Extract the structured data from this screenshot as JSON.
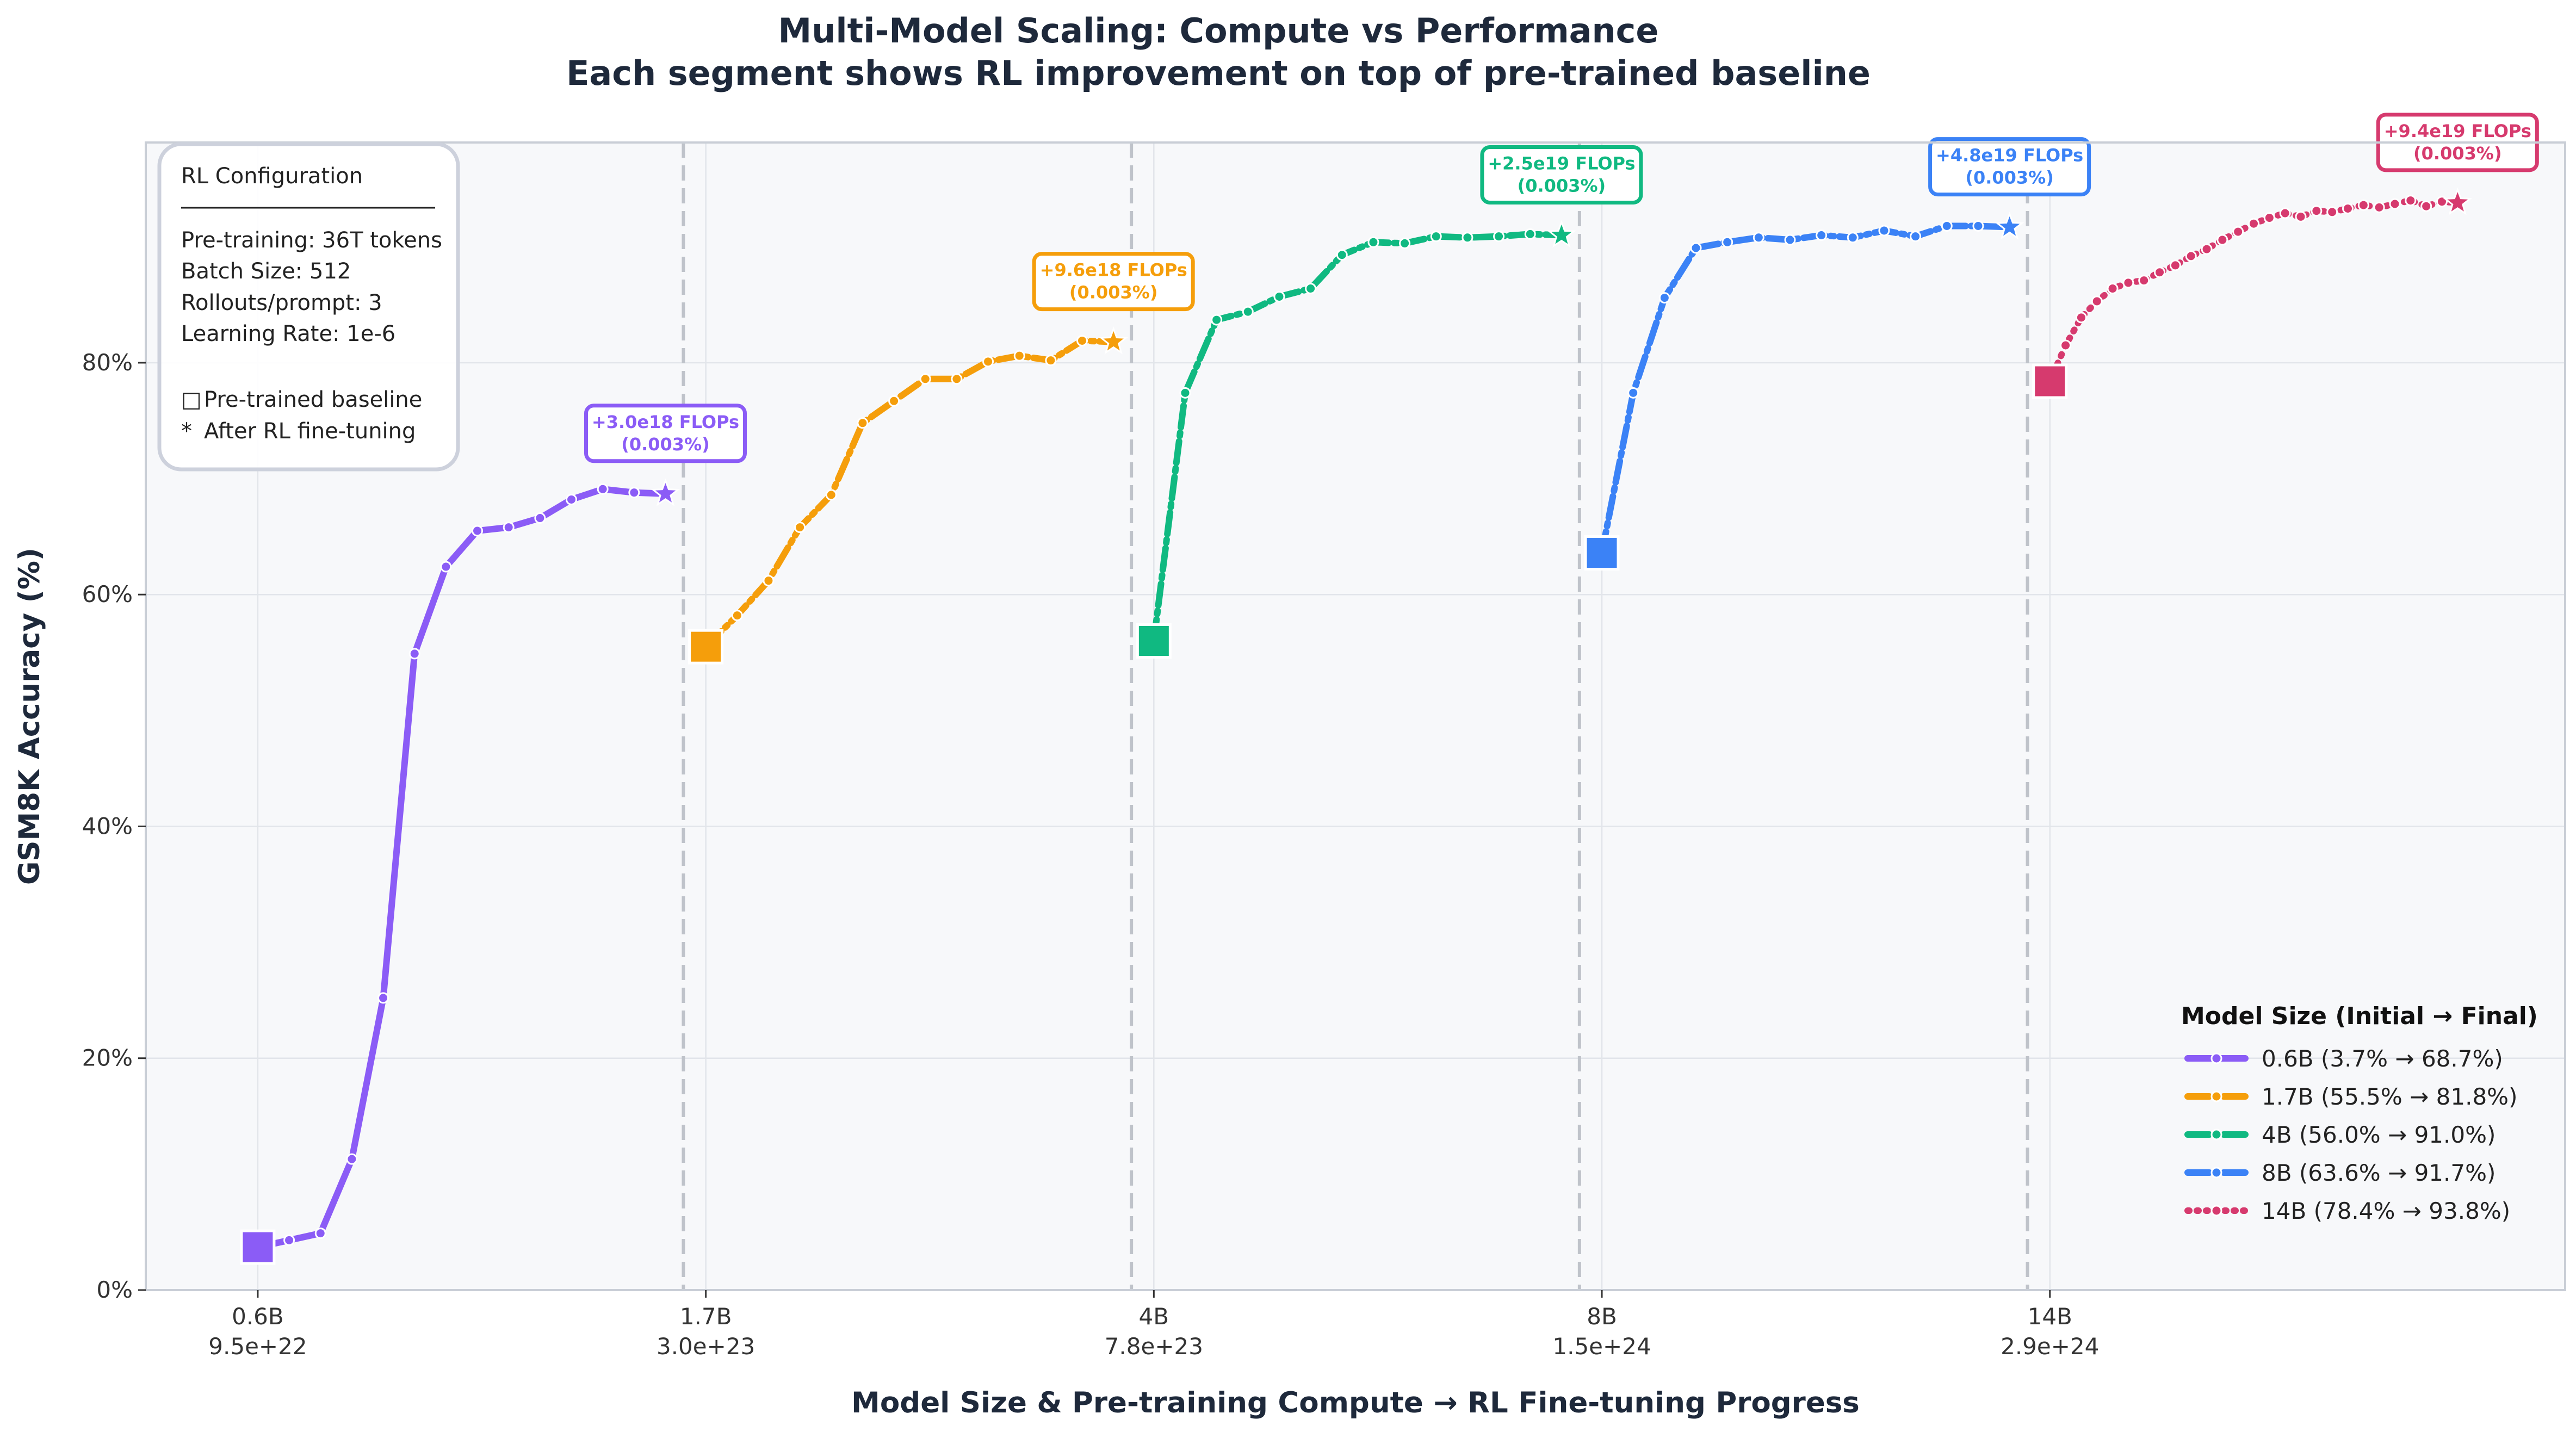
{
  "title_line1": "Multi-Model Scaling: Compute vs Performance",
  "title_line2": "Each segment shows RL improvement on top of pre-trained baseline",
  "colors": {
    "0.6B": "#8b5cf6",
    "1.7B": "#f59e0b",
    "4B": "#10b981",
    "8B": "#3b82f6",
    "14B": "#d63a6e",
    "plot_bg": "#f7f8fa",
    "grid": "#e2e5ea",
    "divider": "#bfc3ca"
  },
  "config_box": {
    "title": "RL Configuration",
    "lines": [
      "Pre-training: 36T tokens",
      "Batch Size: 512",
      "Rollouts/prompt: 3",
      "Learning Rate: 1e-6"
    ],
    "marker_lines": [
      {
        "symbol": "□",
        "text": "Pre-trained baseline"
      },
      {
        "symbol": "*",
        "text": "After RL fine-tuning"
      }
    ]
  },
  "legend": {
    "title": "Model Size (Initial → Final)",
    "items": [
      "0.6B (3.7% → 68.7%)",
      "1.7B (55.5% → 81.8%)",
      "4B (56.0% → 91.0%)",
      "8B (63.6% → 91.7%)",
      "14B (78.4% → 93.8%)"
    ]
  },
  "chart_data": {
    "type": "line",
    "title": "Multi-Model Scaling: Compute vs Performance\nEach segment shows RL improvement on top of pre-trained baseline",
    "xlabel": "Model Size & Pre-training Compute → RL Fine-tuning Progress",
    "ylabel": "GSM8K Accuracy (%)",
    "xlim": [
      -0.25,
      5.15
    ],
    "ylim": [
      0,
      99
    ],
    "grid": true,
    "legend_placement": "bottom-right",
    "x_ticks": [
      {
        "x": 0,
        "label": "0.6B",
        "sublabel": "9.5e+22"
      },
      {
        "x": 1,
        "label": "1.7B",
        "sublabel": "3.0e+23"
      },
      {
        "x": 2,
        "label": "4B",
        "sublabel": "7.8e+23"
      },
      {
        "x": 3,
        "label": "8B",
        "sublabel": "1.5e+24"
      },
      {
        "x": 4,
        "label": "14B",
        "sublabel": "2.9e+24"
      }
    ],
    "y_ticks": [
      {
        "y": 0,
        "label": "0%"
      },
      {
        "y": 20,
        "label": "20%"
      },
      {
        "y": 40,
        "label": "40%"
      },
      {
        "y": 60,
        "label": "60%"
      },
      {
        "y": 80,
        "label": "80%"
      }
    ],
    "dividers_x": [
      0.95,
      1.95,
      2.95,
      3.95
    ],
    "series": [
      {
        "name": "0.6B (3.7% → 68.7%)",
        "color_key": "0.6B",
        "baseline": {
          "x": 0,
          "y": 3.7
        },
        "final": {
          "x": 0.91,
          "y": 68.7
        },
        "annotation_line1": "+3.0e18 FLOPs",
        "annotation_line2": "(0.003%)",
        "x": [
          0,
          0.07,
          0.14,
          0.21,
          0.28,
          0.35,
          0.42,
          0.49,
          0.56,
          0.63,
          0.7,
          0.77,
          0.84,
          0.91
        ],
        "y": [
          3.7,
          4.3,
          4.9,
          11.3,
          25.2,
          54.9,
          62.4,
          65.5,
          65.8,
          66.6,
          68.2,
          69.1,
          68.8,
          68.7
        ]
      },
      {
        "name": "1.7B (55.5% → 81.8%)",
        "color_key": "1.7B",
        "baseline": {
          "x": 1,
          "y": 55.5
        },
        "final": {
          "x": 1.91,
          "y": 81.8
        },
        "annotation_line1": "+9.6e18 FLOPs",
        "annotation_line2": "(0.003%)",
        "x": [
          1,
          1.07,
          1.14,
          1.21,
          1.28,
          1.35,
          1.42,
          1.49,
          1.56,
          1.63,
          1.7,
          1.77,
          1.84,
          1.91
        ],
        "y": [
          55.5,
          58.2,
          61.2,
          65.8,
          68.6,
          74.8,
          76.7,
          78.6,
          78.6,
          80.1,
          80.6,
          80.2,
          81.9,
          81.8
        ]
      },
      {
        "name": "4B (56.0% → 91.0%)",
        "color_key": "4B",
        "baseline": {
          "x": 2,
          "y": 56.0
        },
        "final": {
          "x": 2.91,
          "y": 91.0
        },
        "annotation_line1": "+2.5e19 FLOPs",
        "annotation_line2": "(0.003%)",
        "x": [
          2,
          2.07,
          2.14,
          2.21,
          2.28,
          2.35,
          2.42,
          2.49,
          2.56,
          2.63,
          2.7,
          2.77,
          2.84,
          2.91
        ],
        "y": [
          56.0,
          77.4,
          83.7,
          84.4,
          85.7,
          86.4,
          89.3,
          90.4,
          90.3,
          90.9,
          90.8,
          90.9,
          91.1,
          91.0
        ]
      },
      {
        "name": "8B (63.6% → 91.7%)",
        "color_key": "8B",
        "baseline": {
          "x": 3,
          "y": 63.6
        },
        "final": {
          "x": 3.91,
          "y": 91.7
        },
        "annotation_line1": "+4.8e19 FLOPs",
        "annotation_line2": "(0.003%)",
        "x": [
          3,
          3.07,
          3.14,
          3.21,
          3.28,
          3.35,
          3.42,
          3.49,
          3.56,
          3.63,
          3.7,
          3.77,
          3.84,
          3.91
        ],
        "y": [
          63.6,
          77.4,
          85.6,
          89.9,
          90.4,
          90.8,
          90.6,
          91.0,
          90.8,
          91.4,
          90.9,
          91.8,
          91.8,
          91.7
        ]
      },
      {
        "name": "14B (78.4% → 93.8%)",
        "color_key": "14B",
        "baseline": {
          "x": 4,
          "y": 78.4
        },
        "final": {
          "x": 4.91,
          "y": 93.8
        },
        "annotation_line1": "+9.4e19 FLOPs",
        "annotation_line2": "(0.003%)",
        "x": [
          4,
          4.035,
          4.07,
          4.105,
          4.14,
          4.175,
          4.21,
          4.245,
          4.28,
          4.315,
          4.35,
          4.385,
          4.42,
          4.455,
          4.49,
          4.525,
          4.56,
          4.595,
          4.63,
          4.665,
          4.7,
          4.735,
          4.77,
          4.805,
          4.84,
          4.875,
          4.91
        ],
        "y": [
          78.4,
          81.5,
          83.9,
          85.3,
          86.4,
          86.9,
          87.1,
          87.8,
          88.4,
          89.2,
          89.8,
          90.6,
          91.3,
          92.0,
          92.5,
          92.9,
          92.6,
          93.1,
          93.0,
          93.3,
          93.6,
          93.4,
          93.7,
          94.0,
          93.5,
          93.9,
          93.8
        ]
      }
    ]
  }
}
